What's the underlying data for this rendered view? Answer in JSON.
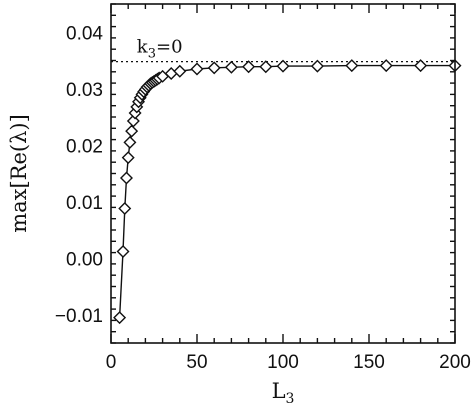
{
  "chart_data": {
    "type": "line",
    "title": "",
    "xlabel": {
      "main": "L",
      "sub": "3"
    },
    "ylabel": "max[Re(λ)]",
    "xlim": [
      0,
      200
    ],
    "ylim": [
      -0.015,
      0.045
    ],
    "x_ticks": [
      0,
      50,
      100,
      150,
      200
    ],
    "y_ticks": [
      -0.01,
      0.0,
      0.01,
      0.02,
      0.03,
      0.04
    ],
    "x_tick_labels": [
      "0",
      "50",
      "100",
      "150",
      "200"
    ],
    "y_tick_labels": [
      "−0.01",
      "0.00",
      "0.01",
      "0.02",
      "0.03",
      "0.04"
    ],
    "grid": false,
    "series": [
      {
        "marker": "diamond",
        "x": [
          5,
          7,
          8,
          9,
          10,
          11,
          12,
          13,
          14,
          15,
          16,
          17,
          18,
          19,
          20,
          21,
          22,
          23,
          24,
          25,
          26,
          27,
          28,
          30,
          35,
          40,
          50,
          60,
          70,
          80,
          90,
          100,
          120,
          140,
          160,
          180,
          200
        ],
        "y": [
          -0.0105,
          0.0012,
          0.0088,
          0.0142,
          0.0178,
          0.0205,
          0.0225,
          0.0243,
          0.0257,
          0.0268,
          0.0277,
          0.0284,
          0.029,
          0.0295,
          0.0299,
          0.0303,
          0.0306,
          0.0309,
          0.0311,
          0.0313,
          0.0315,
          0.0317,
          0.0319,
          0.0322,
          0.0327,
          0.0331,
          0.0335,
          0.0337,
          0.0338,
          0.0339,
          0.0339,
          0.034,
          0.034,
          0.0341,
          0.0341,
          0.0341,
          0.0341
        ]
      }
    ],
    "reference_line": {
      "y": 0.0348,
      "style": "dotted"
    },
    "annotation": {
      "main": "k",
      "sub": "3",
      "rest": "=0"
    }
  }
}
